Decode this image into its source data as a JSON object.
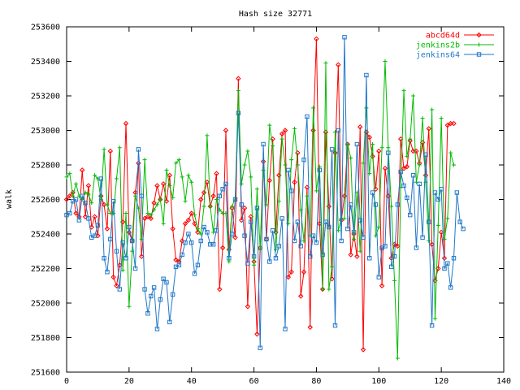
{
  "chart_data": {
    "type": "line",
    "title": "Hash size 32771",
    "xlabel": "",
    "ylabel": "walk",
    "xlim": [
      0,
      140
    ],
    "ylim": [
      251600,
      253600
    ],
    "x_ticks": [
      0,
      20,
      40,
      60,
      80,
      100,
      120,
      140
    ],
    "y_ticks": [
      251600,
      251800,
      252000,
      252200,
      252400,
      252600,
      252800,
      253000,
      253200,
      253400,
      253600
    ],
    "x_tick_labels": [
      "0",
      "20",
      "40",
      "60",
      "80",
      "100",
      "120",
      "140"
    ],
    "y_tick_labels": [
      "251600",
      "251800",
      "252000",
      "252200",
      "252400",
      "252600",
      "252800",
      "253000",
      "253200",
      "253400",
      "253600"
    ],
    "grid": false,
    "legend_position": "top-right",
    "series": [
      {
        "name": "abcd64d",
        "color": "#ff0000",
        "marker": "diamond",
        "values": [
          252600,
          252620,
          252640,
          252520,
          252500,
          252770,
          252500,
          252680,
          252440,
          252500,
          252390,
          252620,
          252570,
          252430,
          252880,
          252150,
          252100,
          252220,
          252470,
          253040,
          252410,
          252360,
          252640,
          252810,
          252270,
          252490,
          252500,
          252490,
          252580,
          252680,
          252600,
          252690,
          252590,
          252740,
          252430,
          252250,
          252240,
          252360,
          252460,
          252480,
          252520,
          252460,
          252410,
          252600,
          252640,
          252700,
          252560,
          252620,
          252750,
          252080,
          252320,
          253000,
          252310,
          252550,
          252380,
          253300,
          252480,
          252550,
          251980,
          252500,
          252240,
          251820,
          252320,
          252820,
          252370,
          252710,
          252950,
          252410,
          252740,
          252980,
          253000,
          252150,
          252180,
          252700,
          252870,
          252040,
          252180,
          252670,
          251860,
          253000,
          253530,
          252460,
          252080,
          252990,
          252560,
          252140,
          252870,
          253380,
          252480,
          252620,
          252920,
          252280,
          252400,
          252270,
          253020,
          251730,
          252990,
          252960,
          252850,
          252660,
          252880,
          252100,
          252780,
          252620,
          252260,
          252340,
          252330,
          252950,
          252780,
          252790,
          252940,
          252880,
          252880,
          252810,
          252930,
          252740,
          253010,
          252340,
          252130,
          252200,
          252410,
          252260,
          253030,
          253040,
          253040
        ]
      },
      {
        "name": "jenkins2b",
        "color": "#00bb00",
        "marker": "plus",
        "values": [
          252730,
          252750,
          252620,
          252690,
          252620,
          252600,
          252640,
          252630,
          252580,
          252740,
          252720,
          252600,
          252890,
          252570,
          252520,
          252520,
          252720,
          252900,
          252190,
          252520,
          251980,
          252300,
          252620,
          252550,
          252370,
          252830,
          252520,
          252510,
          252540,
          252570,
          252600,
          252460,
          252770,
          252680,
          252610,
          252810,
          252830,
          252730,
          252590,
          252740,
          252700,
          252510,
          252430,
          252400,
          252560,
          252970,
          252560,
          252410,
          252600,
          252540,
          252520,
          252520,
          252240,
          252560,
          252610,
          253230,
          252690,
          252800,
          252880,
          252730,
          252220,
          252660,
          252310,
          252770,
          252570,
          253030,
          252910,
          252310,
          252590,
          252950,
          252800,
          252460,
          252830,
          253010,
          252800,
          252540,
          252360,
          252620,
          252390,
          253130,
          252650,
          252790,
          252080,
          253390,
          252080,
          252210,
          252990,
          252420,
          252490,
          252490,
          252920,
          252840,
          252370,
          252640,
          252300,
          252810,
          253130,
          252750,
          252920,
          252390,
          252440,
          252900,
          253400,
          252900,
          252560,
          252130,
          251680,
          252670,
          253230,
          252850,
          252950,
          253200,
          252700,
          252800,
          253070,
          252700,
          252360,
          253120,
          251910,
          252450,
          253070,
          252370,
          252490,
          252870,
          252800
        ]
      },
      {
        "name": "jenkins64",
        "color": "#1f77c8",
        "marker": "square",
        "values": [
          252510,
          252520,
          252590,
          252600,
          252480,
          252620,
          252580,
          252490,
          252380,
          252390,
          252450,
          252720,
          252260,
          252180,
          252370,
          252590,
          252300,
          252080,
          252350,
          252260,
          252440,
          252360,
          252200,
          252890,
          252620,
          252080,
          251940,
          252040,
          252090,
          251850,
          252020,
          252140,
          252120,
          251890,
          252050,
          252210,
          252220,
          252280,
          252350,
          252400,
          252350,
          252170,
          252220,
          252360,
          252440,
          252410,
          252340,
          252340,
          252420,
          252620,
          252660,
          252690,
          252260,
          252400,
          252600,
          253100,
          252570,
          252390,
          252230,
          252470,
          252270,
          252550,
          251740,
          252920,
          252370,
          252240,
          252420,
          252260,
          252330,
          252490,
          251850,
          252770,
          252650,
          252360,
          252470,
          252330,
          252830,
          253080,
          252270,
          252390,
          252350,
          252770,
          252280,
          252470,
          252440,
          252890,
          251870,
          253000,
          252360,
          253540,
          252430,
          252570,
          252410,
          252920,
          252480,
          252380,
          253320,
          252260,
          252640,
          252570,
          252150,
          252320,
          252330,
          252870,
          252210,
          252270,
          252570,
          252760,
          252680,
          252610,
          252510,
          252740,
          252320,
          252690,
          252380,
          252860,
          252470,
          251870,
          252640,
          252600,
          252660,
          252200,
          252230,
          252090,
          252260,
          252640,
          252470,
          252430
        ]
      }
    ]
  }
}
